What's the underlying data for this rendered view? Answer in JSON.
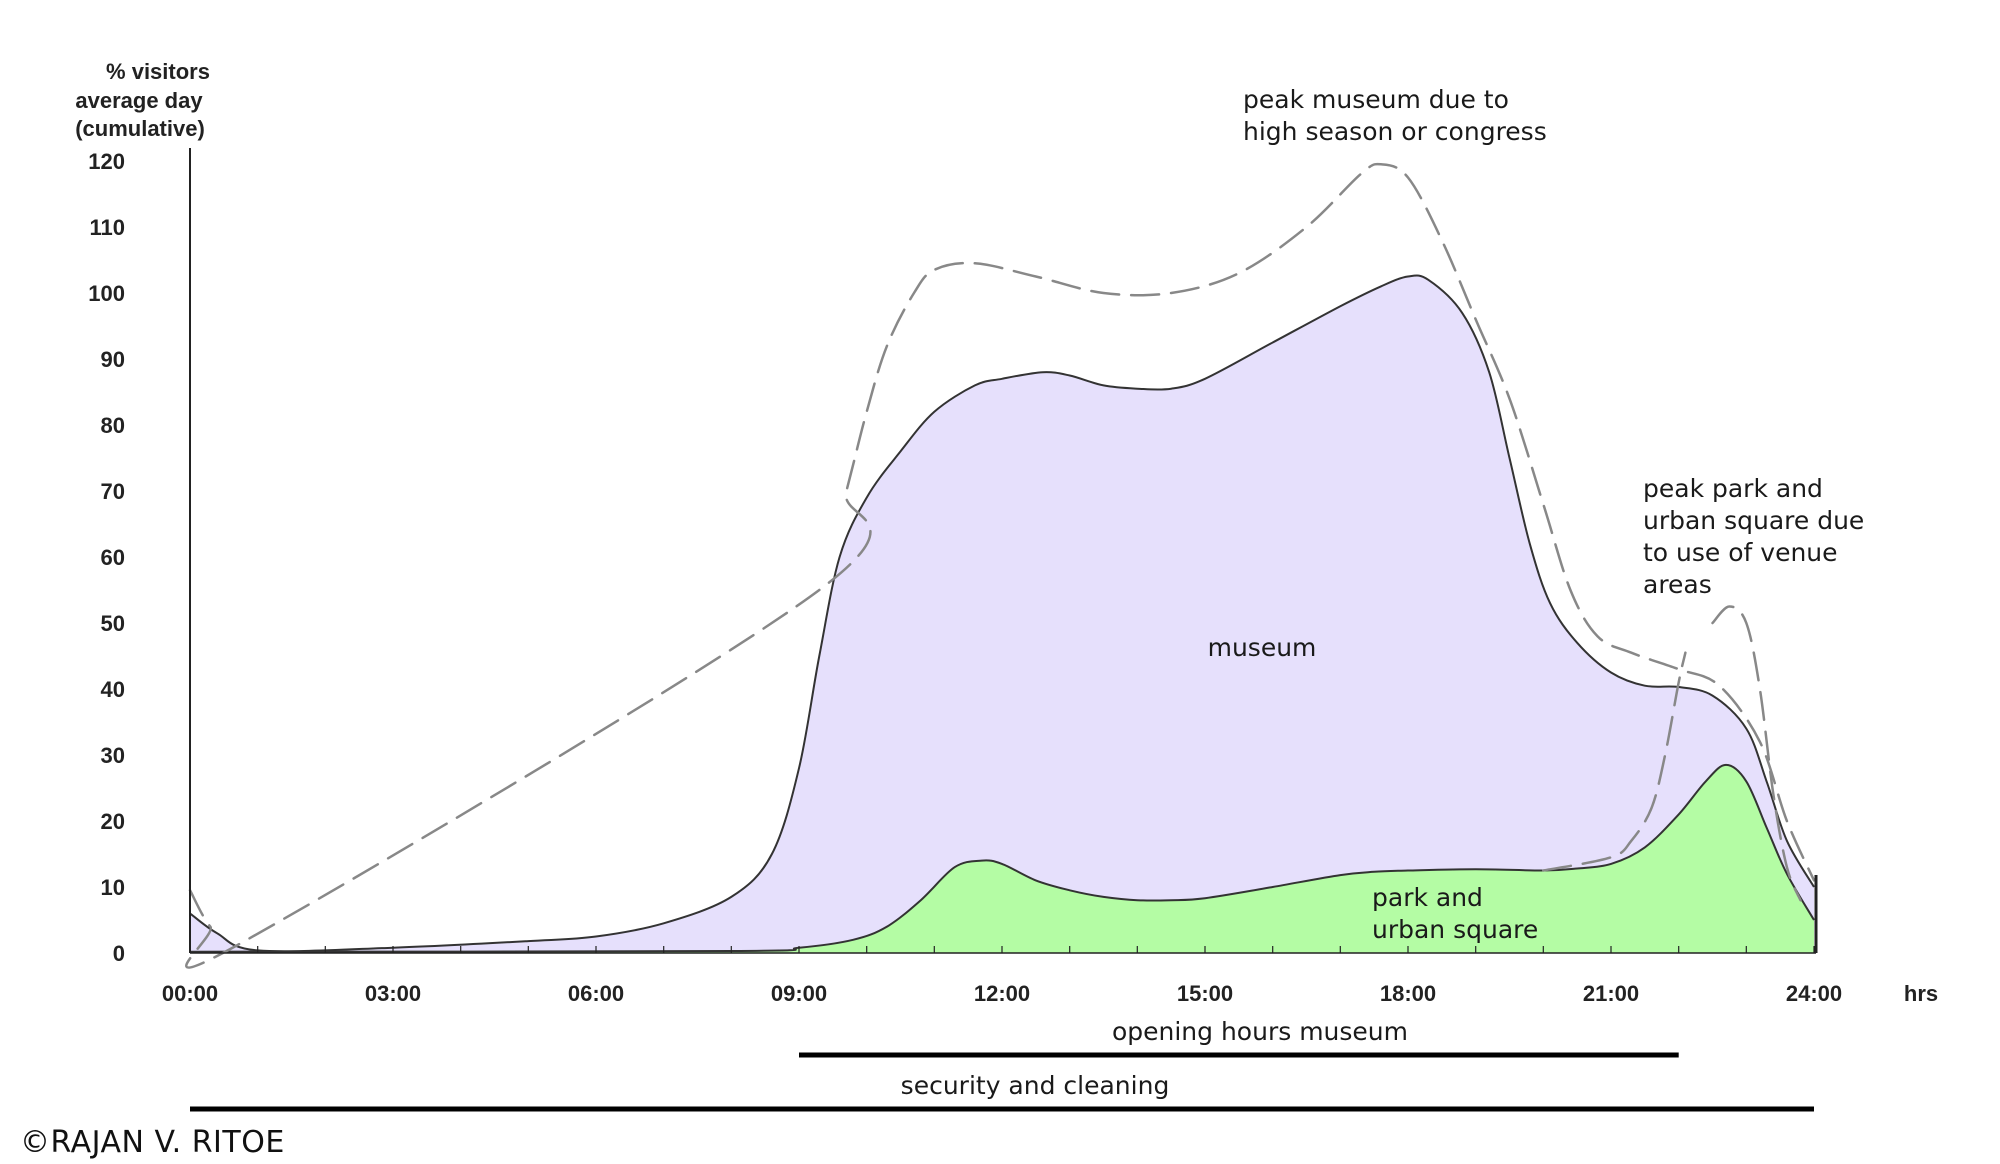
{
  "chart_data": {
    "type": "area",
    "ylabel": [
      "% visitors",
      "average day",
      "(cumulative)"
    ],
    "xlabel": "hrs",
    "xlim": [
      0,
      24
    ],
    "ylim": [
      0,
      120
    ],
    "x_ticks": [
      "00:00",
      "03:00",
      "06:00",
      "09:00",
      "12:00",
      "15:00",
      "18:00",
      "21:00",
      "24:00"
    ],
    "y_ticks": [
      0,
      10,
      20,
      30,
      40,
      50,
      60,
      70,
      80,
      90,
      100,
      110,
      120
    ],
    "series": [
      {
        "name": "museum",
        "color": "#e6e0fc",
        "points": [
          [
            0,
            6
          ],
          [
            0.4,
            3
          ],
          [
            1,
            0.4
          ],
          [
            3,
            0.8
          ],
          [
            5,
            1.8
          ],
          [
            6,
            2.5
          ],
          [
            7,
            4.5
          ],
          [
            8,
            8.5
          ],
          [
            8.6,
            15
          ],
          [
            9,
            28
          ],
          [
            9.3,
            45
          ],
          [
            9.6,
            60
          ],
          [
            10,
            69
          ],
          [
            10.5,
            76
          ],
          [
            11,
            82
          ],
          [
            11.6,
            86
          ],
          [
            12,
            87
          ],
          [
            12.6,
            88
          ],
          [
            13,
            87.5
          ],
          [
            13.5,
            86
          ],
          [
            14,
            85.5
          ],
          [
            14.5,
            85.5
          ],
          [
            15,
            87
          ],
          [
            16,
            92.5
          ],
          [
            17,
            98
          ],
          [
            17.6,
            101
          ],
          [
            18,
            102.5
          ],
          [
            18.3,
            102
          ],
          [
            18.8,
            97
          ],
          [
            19.2,
            88
          ],
          [
            19.5,
            75
          ],
          [
            19.8,
            62
          ],
          [
            20.1,
            53
          ],
          [
            20.5,
            47
          ],
          [
            21,
            42.5
          ],
          [
            21.5,
            40.5
          ],
          [
            22,
            40.3
          ],
          [
            22.5,
            39
          ],
          [
            23,
            34
          ],
          [
            23.3,
            26
          ],
          [
            23.6,
            17
          ],
          [
            24,
            10
          ]
        ]
      },
      {
        "name": "park and urban square",
        "color": "#b4fca4",
        "points": [
          [
            0,
            0.2
          ],
          [
            8,
            0.3
          ],
          [
            9,
            0.8
          ],
          [
            9.8,
            2
          ],
          [
            10.3,
            4
          ],
          [
            10.8,
            8
          ],
          [
            11.3,
            13
          ],
          [
            11.7,
            14
          ],
          [
            12,
            13.5
          ],
          [
            12.5,
            11
          ],
          [
            13,
            9.5
          ],
          [
            13.5,
            8.5
          ],
          [
            14,
            8
          ],
          [
            14.5,
            8
          ],
          [
            15,
            8.3
          ],
          [
            16,
            10
          ],
          [
            17,
            11.8
          ],
          [
            17.5,
            12.3
          ],
          [
            18,
            12.5
          ],
          [
            19,
            12.7
          ],
          [
            20,
            12.5
          ],
          [
            20.5,
            12.8
          ],
          [
            21,
            13.5
          ],
          [
            21.5,
            16
          ],
          [
            22,
            21
          ],
          [
            22.4,
            26
          ],
          [
            22.7,
            28.5
          ],
          [
            23,
            26
          ],
          [
            23.3,
            19
          ],
          [
            23.6,
            12
          ],
          [
            24,
            5
          ]
        ]
      },
      {
        "name": "peak museum due to high season or congress",
        "style": "dashed",
        "points": [
          [
            0,
            9.5
          ],
          [
            0.3,
            4
          ],
          [
            0.7,
            1.2
          ],
          [
            9.3,
            55
          ],
          [
            9.7,
            70
          ],
          [
            10,
            82
          ],
          [
            10.3,
            92
          ],
          [
            10.7,
            100
          ],
          [
            11,
            103.5
          ],
          [
            11.6,
            104.5
          ],
          [
            12.5,
            102.5
          ],
          [
            13.5,
            100
          ],
          [
            14.5,
            100
          ],
          [
            15.5,
            103
          ],
          [
            16.5,
            110
          ],
          [
            17.3,
            118
          ],
          [
            17.6,
            119.5
          ],
          [
            18,
            117.5
          ],
          [
            18.5,
            108
          ],
          [
            19,
            96
          ],
          [
            19.5,
            84
          ],
          [
            20,
            68
          ],
          [
            20.4,
            55
          ],
          [
            20.8,
            48
          ],
          [
            21.3,
            45.5
          ],
          [
            22,
            43
          ],
          [
            22.6,
            40.5
          ],
          [
            23.2,
            32
          ],
          [
            23.6,
            20
          ],
          [
            24,
            11
          ]
        ]
      },
      {
        "name": "peak park and urban square due to use of venue areas",
        "style": "dashed",
        "points": [
          [
            20,
            12.5
          ],
          [
            21,
            14.5
          ],
          [
            21.3,
            17
          ],
          [
            21.6,
            22
          ],
          [
            21.8,
            30
          ],
          [
            22,
            41
          ],
          [
            22.1,
            45.5
          ]
        ]
      },
      {
        "name": "peak park and urban square due to use of venue areas (upper)",
        "style": "dashed",
        "points": [
          [
            22.5,
            50
          ],
          [
            22.75,
            52.5
          ],
          [
            23,
            50
          ],
          [
            23.2,
            40
          ],
          [
            23.4,
            24
          ],
          [
            23.6,
            13
          ],
          [
            23.8,
            8
          ]
        ]
      }
    ],
    "annotations": [
      {
        "text": [
          "museum"
        ]
      },
      {
        "text": [
          "park and",
          "urban square"
        ]
      },
      {
        "text": [
          "peak museum due to",
          "high season or congress"
        ]
      },
      {
        "text": [
          "peak park and",
          "urban square due",
          "to use of venue",
          "areas"
        ]
      }
    ],
    "bars": [
      {
        "label": "opening hours museum",
        "start": 9,
        "end": 22
      },
      {
        "label": "security and cleaning",
        "start": 0,
        "end": 24
      }
    ]
  },
  "credit": "©RAJAN V. RITOE",
  "colors": {
    "axis": "#222222",
    "outline": "#333333",
    "dashed": "#888888",
    "bar": "#000000"
  }
}
